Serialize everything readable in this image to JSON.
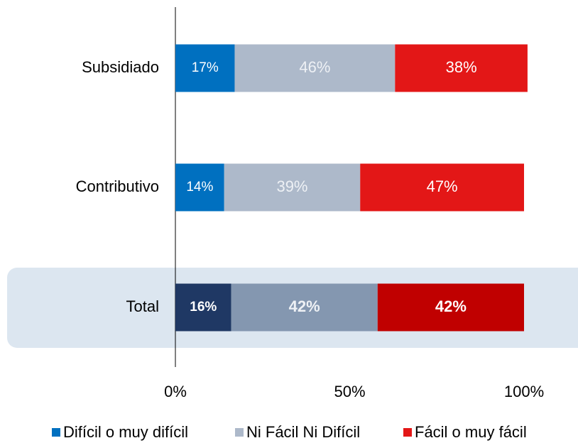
{
  "chart_data": {
    "type": "stacked-barh",
    "categories": [
      "Subsidiado",
      "Contributivo",
      "Total"
    ],
    "highlight": [
      false,
      false,
      true
    ],
    "series": [
      {
        "name": "Difícil o muy difícil",
        "color": "#0070c0",
        "colors": [
          "#0070c0",
          "#0070c0",
          "#1f3864"
        ],
        "label_color": "#ffffff",
        "values": [
          17,
          14,
          16
        ],
        "value_labels": [
          "17%",
          "14%",
          "16%"
        ]
      },
      {
        "name": "Ni Fácil Ni Difícil",
        "color": "#adb9ca",
        "colors": [
          "#adb9ca",
          "#adb9ca",
          "#8497b0"
        ],
        "label_color": "#eef1f5",
        "values": [
          46,
          39,
          42
        ],
        "value_labels": [
          "46%",
          "39%",
          "42%"
        ]
      },
      {
        "name": "Fácil o muy fácil",
        "color": "#e31717",
        "colors": [
          "#e31717",
          "#e31717",
          "#c00000"
        ],
        "label_color": "#ffffff",
        "values": [
          38,
          47,
          42
        ],
        "value_labels": [
          "38%",
          "47%",
          "42%"
        ]
      }
    ],
    "xlim": [
      0,
      100
    ],
    "xticks": [
      {
        "value": 0,
        "label": "0%"
      },
      {
        "value": 50,
        "label": "50%"
      },
      {
        "value": 100,
        "label": "100%"
      }
    ],
    "legend": "bottom"
  }
}
